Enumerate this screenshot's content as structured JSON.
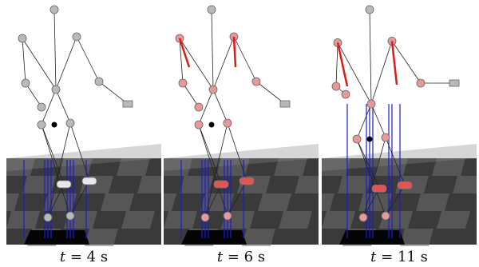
{
  "panels": [
    {
      "var": "t",
      "eq": " = ",
      "value": "4",
      "unit": "s",
      "arrows": false,
      "pose": "stand"
    },
    {
      "var": "t",
      "eq": " = ",
      "value": "6",
      "unit": "s",
      "arrows": true,
      "pose": "stand"
    },
    {
      "var": "t",
      "eq": " = ",
      "value": "11",
      "unit": "s",
      "arrows": true,
      "pose": "lift"
    }
  ],
  "colors": {
    "floor_dark": "#3a3a3a",
    "floor_light": "#6e6e6e",
    "force_line": "#1a1ad8",
    "force_arrow": "#e01818",
    "joint_gray": "#b9b9b9",
    "joint_pink": "#e59a9a",
    "actuator_red": "#e05656"
  }
}
